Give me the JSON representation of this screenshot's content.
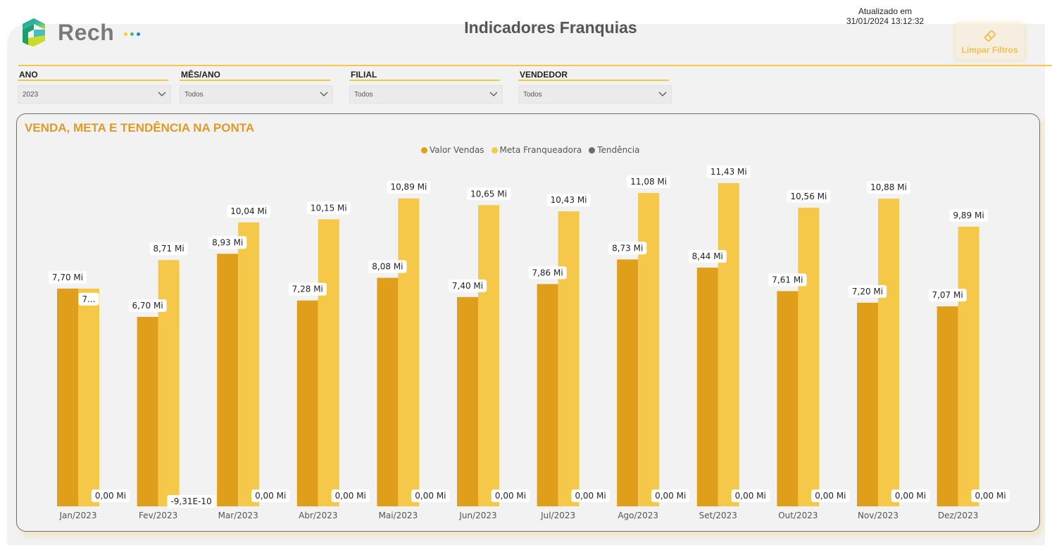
{
  "header": {
    "brand": "Rech",
    "title": "Indicadores Franquias",
    "updated_label": "Atualizado em",
    "updated_value": "31/01/2024 13:12:32",
    "clear_filters": "Limpar Filtros"
  },
  "colors": {
    "accent": "#f5c84a",
    "title_orange": "#e09b26",
    "vendas": "#e09f1a",
    "meta": "#f5c84a",
    "tendencia": "#6b6b6b"
  },
  "filters": [
    {
      "label": "ANO",
      "value": "2023"
    },
    {
      "label": "MÊS/ANO",
      "value": "Todos"
    },
    {
      "label": "FILIAL",
      "value": "Todos"
    },
    {
      "label": "VENDEDOR",
      "value": "Todos"
    }
  ],
  "chart_data": {
    "type": "bar",
    "title": "VENDA, META E TENDÊNCIA NA PONTA",
    "legend_position": "top-center",
    "categories": [
      "Jan/2023",
      "Fev/2023",
      "Mar/2023",
      "Abr/2023",
      "Mai/2023",
      "Jun/2023",
      "Jul/2023",
      "Ago/2023",
      "Set/2023",
      "Out/2023",
      "Nov/2023",
      "Dez/2023"
    ],
    "series": [
      {
        "name": "Valor Vendas",
        "color": "#e09f1a",
        "values": [
          7.7,
          6.7,
          8.93,
          7.28,
          8.08,
          7.4,
          7.86,
          8.73,
          8.44,
          7.61,
          7.2,
          7.07
        ],
        "labels": [
          "7,70 Mi",
          "6,70 Mi",
          "8,93 Mi",
          "7,28 Mi",
          "8,08 Mi",
          "7,40 Mi",
          "7,86 Mi",
          "8,73 Mi",
          "8,44 Mi",
          "7,61 Mi",
          "7,20 Mi",
          "7,07 Mi"
        ]
      },
      {
        "name": "Meta Franqueadora",
        "color": "#f5c84a",
        "values": [
          7.7,
          8.71,
          10.04,
          10.15,
          10.89,
          10.65,
          10.43,
          11.08,
          11.43,
          10.56,
          10.88,
          9.89
        ],
        "labels": [
          "7...",
          "8,71 Mi",
          "10,04 Mi",
          "10,15 Mi",
          "10,89 Mi",
          "10,65 Mi",
          "10,43 Mi",
          "11,08 Mi",
          "11,43 Mi",
          "10,56 Mi",
          "10,88 Mi",
          "9,89 Mi"
        ]
      },
      {
        "name": "Tendência",
        "color": "#6b6b6b",
        "values": [
          0,
          0,
          0,
          0,
          0,
          0,
          0,
          0,
          0,
          0,
          0,
          0
        ],
        "labels": [
          "0,00 Mi",
          "-9,31E-10",
          "0,00 Mi",
          "0,00 Mi",
          "0,00 Mi",
          "0,00 Mi",
          "0,00 Mi",
          "0,00 Mi",
          "0,00 Mi",
          "0,00 Mi",
          "0,00 Mi",
          "0,00 Mi"
        ]
      }
    ],
    "ylim": [
      0,
      11.43
    ],
    "xlabel": "",
    "ylabel": "",
    "grid": false
  }
}
